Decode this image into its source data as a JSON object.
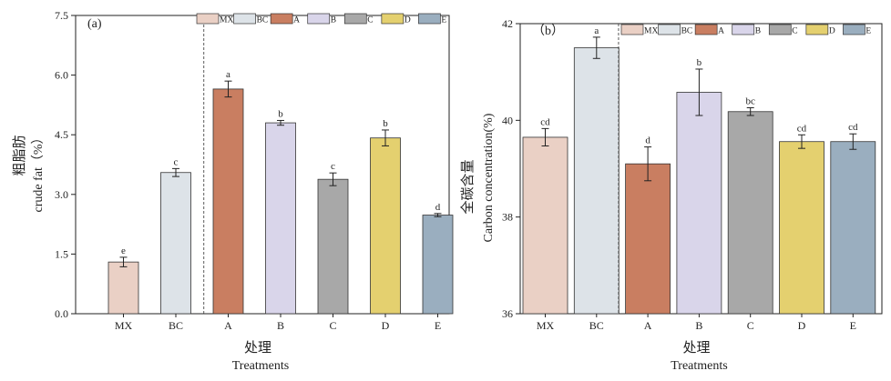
{
  "chart_data": [
    {
      "type": "bar",
      "panel_label": "(a)",
      "categories": [
        "MX",
        "BC",
        "A",
        "B",
        "C",
        "D",
        "E"
      ],
      "values": [
        1.3,
        3.55,
        5.65,
        4.8,
        3.38,
        4.42,
        2.48
      ],
      "errors": [
        0.12,
        0.1,
        0.2,
        0.06,
        0.16,
        0.2,
        0.04
      ],
      "significance": [
        "e",
        "c",
        "a",
        "b",
        "c",
        "b",
        "d"
      ],
      "colors": [
        "#ead0c5",
        "#dde3e8",
        "#c97e61",
        "#d9d5ea",
        "#a8a8a8",
        "#e4d06f",
        "#9aaebf"
      ],
      "ylim": [
        0,
        7.5
      ],
      "yticks": [
        "0.0",
        "1.5",
        "3.0",
        "4.5",
        "6.0",
        "7.5"
      ],
      "ylabel_cn": "粗脂肪",
      "ylabel": "crude fat（%）",
      "xlabel_cn": "处理",
      "xlabel": "Treatments",
      "legend": [
        "MX",
        "BC",
        "A",
        "B",
        "C",
        "D",
        "E"
      ],
      "legend_position": "top-right",
      "divider_after": "BC",
      "grid": false
    },
    {
      "type": "bar",
      "panel_label": "（b）",
      "categories": [
        "MX",
        "BC",
        "A",
        "B",
        "C",
        "D",
        "E"
      ],
      "values": [
        39.65,
        41.5,
        39.1,
        40.58,
        40.18,
        39.56,
        39.56
      ],
      "errors": [
        0.18,
        0.22,
        0.35,
        0.48,
        0.08,
        0.14,
        0.16
      ],
      "significance": [
        "cd",
        "a",
        "d",
        "b",
        "bc",
        "cd",
        "cd"
      ],
      "colors": [
        "#ead0c5",
        "#dde3e8",
        "#c97e61",
        "#d9d5ea",
        "#a8a8a8",
        "#e4d06f",
        "#9aaebf"
      ],
      "ylim": [
        36,
        42
      ],
      "yticks": [
        "36",
        "38",
        "40",
        "42"
      ],
      "ylabel_cn": "全碳含量",
      "ylabel": "Carbon concentration(%)",
      "xlabel_cn": "处理",
      "xlabel": "Treatments",
      "legend": [
        "MX",
        "BC",
        "A",
        "B",
        "C",
        "D",
        "E"
      ],
      "legend_position": "top-right",
      "divider_after": "BC",
      "grid": false
    }
  ]
}
